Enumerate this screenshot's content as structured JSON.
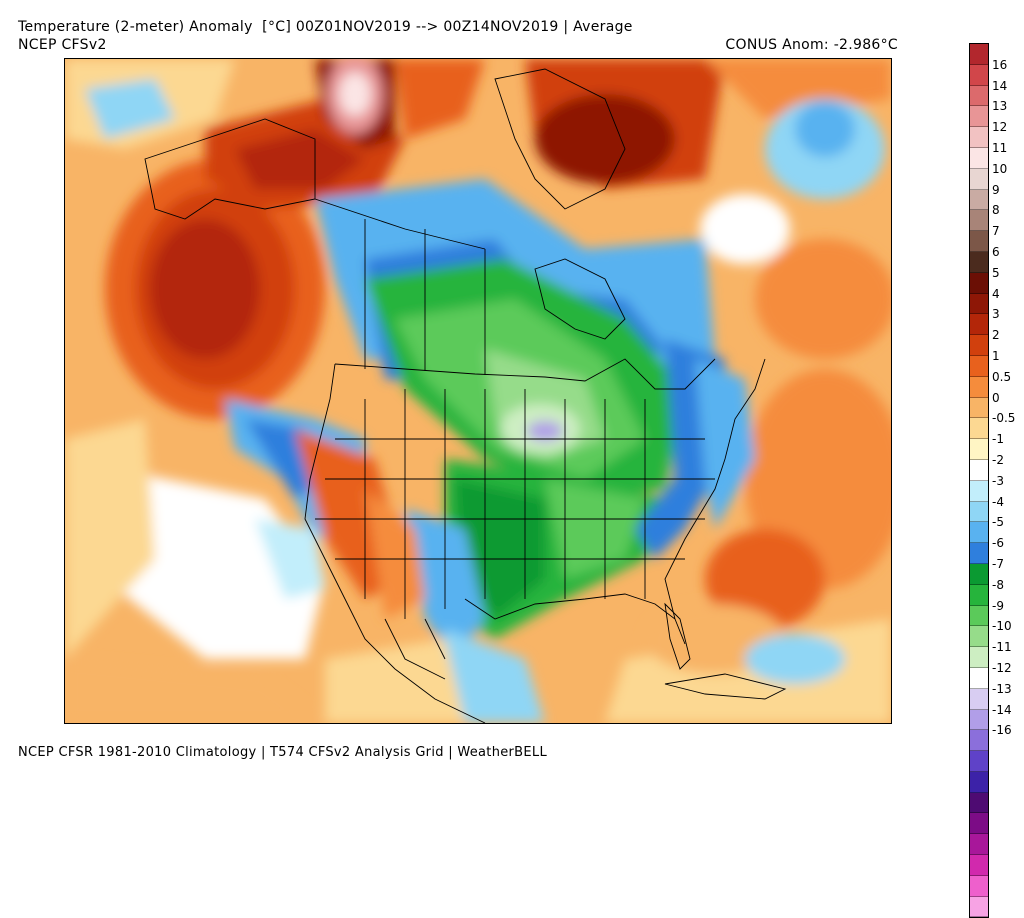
{
  "header": {
    "title": "Temperature (2-meter) Anomaly  [°C] 00Z01NOV2019 --> 00Z14NOV2019 | Average",
    "model": "NCEP CFSv2",
    "conus_anomaly": "CONUS Anom: -2.986°C"
  },
  "footer": {
    "text": "NCEP CFSR 1981-2010 Climatology | T574 CFSv2 Analysis Grid | WeatherBELL"
  },
  "colorbar": {
    "colors": [
      "#b2272d",
      "#d1464a",
      "#dc6a6c",
      "#e89596",
      "#f2c2c2",
      "#fbe5e5",
      "#e8d6d2",
      "#c9aba3",
      "#a88478",
      "#7c5748",
      "#4b2b1e",
      "#6b0f05",
      "#8e1706",
      "#b32609",
      "#d1400d",
      "#e8611d",
      "#f58c3c",
      "#f8b466",
      "#fcd892",
      "#fff5c4",
      "#ffffff",
      "#c2eefb",
      "#8fd6f5",
      "#59b2f0",
      "#2f7fdd",
      "#0b9a32",
      "#26b43c",
      "#5bca5a",
      "#96dc8a",
      "#cdeec2",
      "#ffffff",
      "#d8cdf2",
      "#b19ee8",
      "#8b6fdb",
      "#5f42c8",
      "#3c22a8",
      "#4e0b72",
      "#7c0c86",
      "#a8179a",
      "#d129ad",
      "#ee60cc",
      "#f7a3e4"
    ],
    "label_values": [
      "16",
      "14",
      "13",
      "12",
      "11",
      "10",
      "9",
      "8",
      "7",
      "6",
      "5",
      "4",
      "3",
      "2",
      "1",
      "0.5",
      "0",
      "-0.5",
      "-1",
      "-2",
      "-3",
      "-4",
      "-5",
      "-6",
      "-7",
      "-8",
      "-9",
      "-10",
      "-11",
      "-12",
      "-13",
      "-14",
      "-16"
    ],
    "label_cell_index": [
      1,
      2,
      3,
      4,
      5,
      6,
      7,
      8,
      9,
      10,
      11,
      12,
      13,
      14,
      15,
      16,
      17,
      18,
      19,
      20,
      21,
      22,
      23,
      24,
      25,
      26,
      27,
      28,
      29,
      30,
      31,
      32,
      33
    ]
  }
}
